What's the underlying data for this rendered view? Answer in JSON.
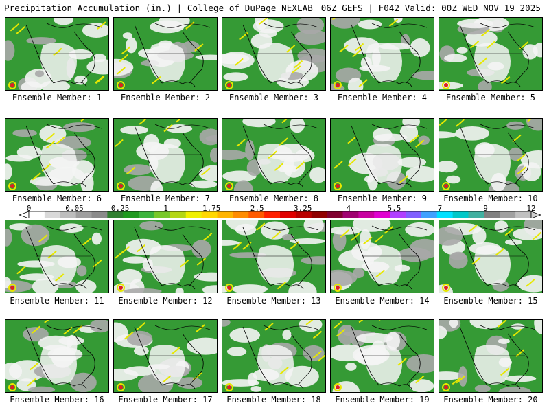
{
  "header": {
    "left_title": "Precipitation Accumulation (in.) | College of DuPage NEXLAB",
    "right_title": "06Z GEFS | F042 Valid: 00Z WED NOV 19 2025"
  },
  "member_label_prefix": "Ensemble Member: ",
  "members": [
    {
      "number": "1",
      "label": "Ensemble Member: 1"
    },
    {
      "number": "2",
      "label": "Ensemble Member: 2"
    },
    {
      "number": "3",
      "label": "Ensemble Member: 3"
    },
    {
      "number": "4",
      "label": "Ensemble Member: 4"
    },
    {
      "number": "5",
      "label": "Ensemble Member: 5"
    },
    {
      "number": "6",
      "label": "Ensemble Member: 6"
    },
    {
      "number": "7",
      "label": "Ensemble Member: 7"
    },
    {
      "number": "8",
      "label": "Ensemble Member: 8"
    },
    {
      "number": "9",
      "label": "Ensemble Member: 9"
    },
    {
      "number": "10",
      "label": "Ensemble Member: 10"
    },
    {
      "number": "11",
      "label": "Ensemble Member: 11"
    },
    {
      "number": "12",
      "label": "Ensemble Member: 12"
    },
    {
      "number": "13",
      "label": "Ensemble Member: 13"
    },
    {
      "number": "14",
      "label": "Ensemble Member: 14"
    },
    {
      "number": "15",
      "label": "Ensemble Member: 15"
    },
    {
      "number": "16",
      "label": "Ensemble Member: 16"
    },
    {
      "number": "17",
      "label": "Ensemble Member: 17"
    },
    {
      "number": "18",
      "label": "Ensemble Member: 18"
    },
    {
      "number": "19",
      "label": "Ensemble Member: 19"
    },
    {
      "number": "20",
      "label": "Ensemble Member: 20"
    }
  ],
  "colorbar": {
    "units": "in.",
    "tick_labels": [
      "0",
      "0.05",
      "0.25",
      "1",
      "1.75",
      "2.5",
      "3.25",
      "4",
      "5.5",
      "7",
      "9",
      "12"
    ],
    "colors": [
      "#ffffff",
      "#d9d9d9",
      "#bdbdbd",
      "#9e9e9e",
      "#8a8a8a",
      "#2f7f2f",
      "#1f9a1f",
      "#3cb43c",
      "#78c82a",
      "#b4d614",
      "#f0f000",
      "#ffd700",
      "#ffb400",
      "#ff8c00",
      "#ff5a00",
      "#ff2000",
      "#e00000",
      "#b80000",
      "#900000",
      "#800030",
      "#a00070",
      "#c800a0",
      "#e000d0",
      "#b040ff",
      "#8060ff",
      "#40a0ff",
      "#00e0ff",
      "#00c8c8",
      "#40b0a0",
      "#808080",
      "#a0a0a0",
      "#c0c0c0"
    ],
    "left_arrow_color": "#ffffff",
    "right_arrow_color": "#d0d0d0"
  },
  "map_colors": {
    "green_dark": "#2d8a2d",
    "green": "#3aa33a",
    "light": "#f4f4f4",
    "gray": "#a8a8a8",
    "yellow": "#e8e800",
    "red": "#e02020"
  }
}
